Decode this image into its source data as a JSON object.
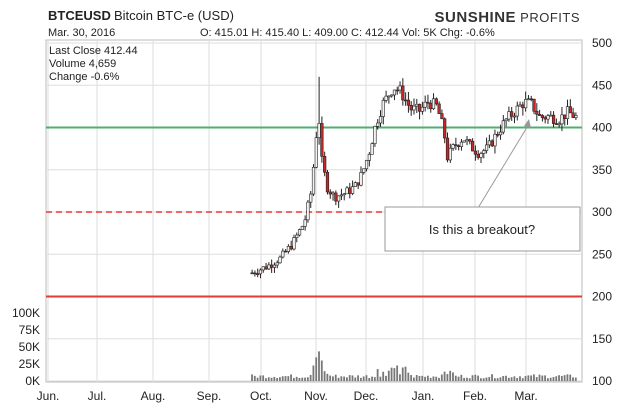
{
  "header": {
    "symbol": "BTCEUSD",
    "name": "Bitcoin BTC-e (USD)",
    "date": "Mar. 30, 2016",
    "ohlc_line": "O: 415.01 H: 415.40 L: 409.00 C: 412.44 Vol: 5K Chg: -0.6%",
    "brand_bold": "SUNSHINE",
    "brand_rest": " PROFITS"
  },
  "stats": {
    "last_close": "Last Close 412.44",
    "volume": "Volume 4,659",
    "change": "Change -0.6%"
  },
  "annotation": {
    "text": "Is this a breakout?"
  },
  "colors": {
    "candle_up": "#f2f2f2",
    "candle_down": "#c62828",
    "wick": "#222222",
    "green_line": "#4caf6e",
    "red_line": "#e53935",
    "volume_bar": "#777777",
    "grid": "#dddddd"
  },
  "chart_data": {
    "type": "candlestick",
    "x_tick_labels": [
      "Jun.",
      "Jul.",
      "Aug.",
      "Sep.",
      "Oct.",
      "Nov.",
      "Dec.",
      "Jan.",
      "Feb.",
      "Mar."
    ],
    "y_price_ticks": [
      "500",
      "450",
      "400",
      "350",
      "300",
      "250",
      "200",
      "150",
      "100"
    ],
    "y_volume_ticks": [
      "100K",
      "75K",
      "50K",
      "25K",
      "0K"
    ],
    "price_range": [
      100,
      500
    ],
    "volume_range": [
      0,
      100000
    ],
    "horizontal_levels": [
      {
        "value": 400,
        "style": "solid",
        "color": "green"
      },
      {
        "value": 300,
        "style": "dashed",
        "color": "red"
      },
      {
        "value": 200,
        "style": "solid",
        "color": "red"
      }
    ],
    "price_path": [
      [
        "2015-09-26",
        228
      ],
      [
        "2015-10-05",
        236
      ],
      [
        "2015-10-12",
        245
      ],
      [
        "2015-10-19",
        262
      ],
      [
        "2015-10-26",
        288
      ],
      [
        "2015-10-30",
        325
      ],
      [
        "2015-11-03",
        420
      ],
      [
        "2015-11-05",
        360
      ],
      [
        "2015-11-08",
        330
      ],
      [
        "2015-11-12",
        318
      ],
      [
        "2015-11-18",
        322
      ],
      [
        "2015-11-24",
        330
      ],
      [
        "2015-11-28",
        345
      ],
      [
        "2015-12-02",
        370
      ],
      [
        "2015-12-06",
        405
      ],
      [
        "2015-12-10",
        428
      ],
      [
        "2015-12-16",
        448
      ],
      [
        "2015-12-20",
        443
      ],
      [
        "2015-12-26",
        422
      ],
      [
        "2015-12-31",
        420
      ],
      [
        "2016-01-05",
        430
      ],
      [
        "2016-01-10",
        425
      ],
      [
        "2016-01-14",
        395
      ],
      [
        "2016-01-16",
        365
      ],
      [
        "2016-01-20",
        378
      ],
      [
        "2016-01-25",
        388
      ],
      [
        "2016-01-29",
        378
      ],
      [
        "2016-02-03",
        370
      ],
      [
        "2016-02-08",
        375
      ],
      [
        "2016-02-14",
        395
      ],
      [
        "2016-02-19",
        410
      ],
      [
        "2016-02-24",
        420
      ],
      [
        "2016-02-29",
        430
      ],
      [
        "2016-03-04",
        428
      ],
      [
        "2016-03-09",
        412
      ],
      [
        "2016-03-14",
        413
      ],
      [
        "2016-03-20",
        410
      ],
      [
        "2016-03-25",
        418
      ],
      [
        "2016-03-30",
        412
      ]
    ],
    "last_close": 412.44
  }
}
